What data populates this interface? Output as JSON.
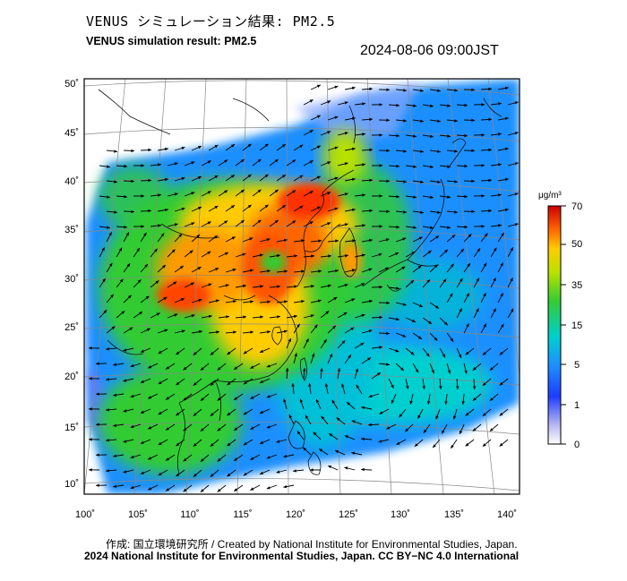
{
  "header": {
    "title_jp": "VENUS シミュレーション結果: PM2.5",
    "title_en": "VENUS simulation result: PM2.5",
    "datetime": "2024-08-06 09:00JST"
  },
  "map": {
    "lon_range": [
      100,
      140
    ],
    "lat_range": [
      10,
      50
    ],
    "lon_ticks": [
      "100˚",
      "105˚",
      "110˚",
      "115˚",
      "120˚",
      "125˚",
      "130˚",
      "135˚",
      "140˚"
    ],
    "lat_ticks": [
      "50˚",
      "45˚",
      "40˚",
      "35˚",
      "30˚",
      "25˚",
      "20˚",
      "15˚",
      "10˚"
    ],
    "field": "PM2.5 concentration with wind vectors"
  },
  "colorbar": {
    "unit": "μg/m³",
    "ticks": [
      "70",
      "50",
      "35",
      "15",
      "5",
      "1",
      "0"
    ],
    "colors": [
      "#cc0000",
      "#ff6600",
      "#ffcc00",
      "#33cc33",
      "#00cccc",
      "#1e6fff",
      "#ffffff"
    ]
  },
  "footer": {
    "credit": "作成: 国立環境研究所 / Created by National Institute for Environmental Studies, Japan.",
    "copyright": "2024 National Institute for Environmental Studies, Japan. CC BY−NC 4.0 International"
  }
}
